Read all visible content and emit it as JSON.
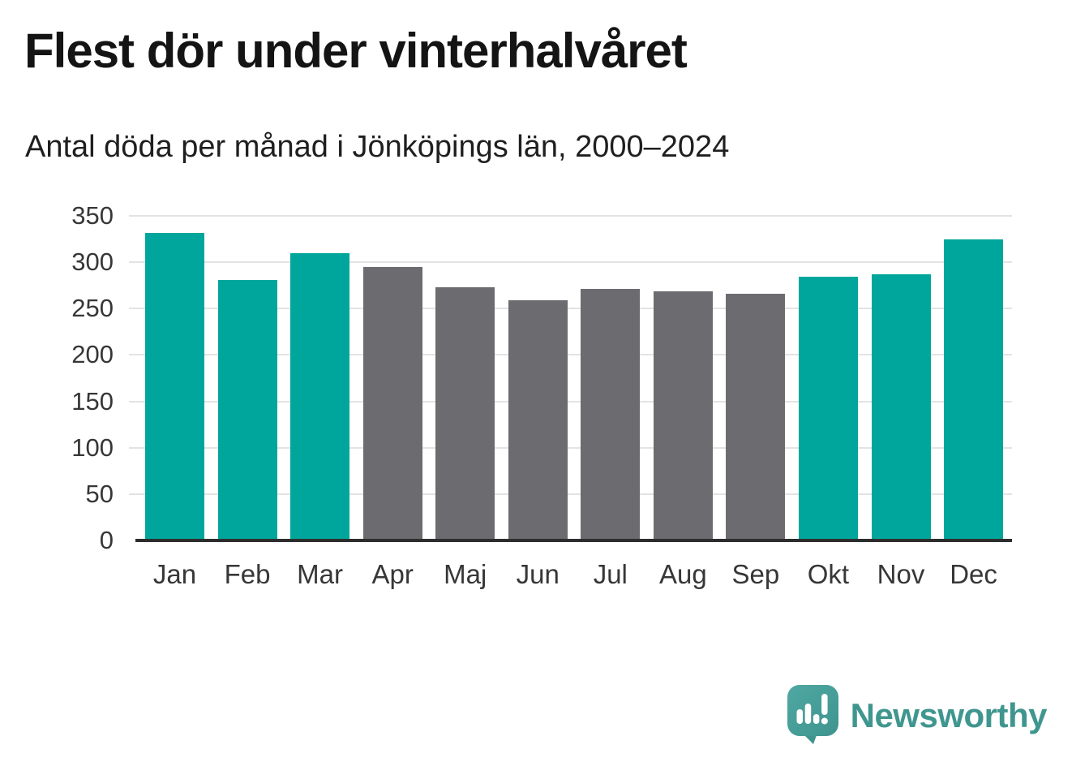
{
  "header": {
    "title": "Flest dör under vinterhalvåret",
    "subtitle": "Antal döda per månad i Jönköpings län, 2000–2024"
  },
  "branding": {
    "logo_text": "Newsworthy",
    "logo_text_color": "#3f968f",
    "bubble_color_top": "#4fa8a3",
    "bubble_color_bottom": "#3f948e",
    "bubble_icon": "bar-chart-exclamation-icon"
  },
  "chart_data": {
    "type": "bar",
    "title": "Flest dör under vinterhalvåret",
    "subtitle": "Antal döda per månad i Jönköpings län, 2000–2024",
    "categories": [
      "Jan",
      "Feb",
      "Mar",
      "Apr",
      "Maj",
      "Jun",
      "Jul",
      "Aug",
      "Sep",
      "Okt",
      "Nov",
      "Dec"
    ],
    "values": [
      332,
      281,
      310,
      295,
      273,
      259,
      271,
      269,
      266,
      284,
      287,
      325
    ],
    "colors": [
      "#00a69c",
      "#00a69c",
      "#00a69c",
      "#6b6b70",
      "#6b6b70",
      "#6b6b70",
      "#6b6b70",
      "#6b6b70",
      "#6b6b70",
      "#00a69c",
      "#00a69c",
      "#00a69c"
    ],
    "highlight_color": "#00a69c",
    "default_color": "#6b6b70",
    "highlight_categories": [
      "Jan",
      "Feb",
      "Mar",
      "Okt",
      "Nov",
      "Dec"
    ],
    "xlabel": "",
    "ylabel": "",
    "ylim": [
      0,
      350
    ],
    "yticks": [
      0,
      50,
      100,
      150,
      200,
      250,
      300,
      350
    ],
    "grid": true,
    "gridline_color": "#e3e3e3",
    "axis_color": "#2d2d2d",
    "legend": false
  }
}
